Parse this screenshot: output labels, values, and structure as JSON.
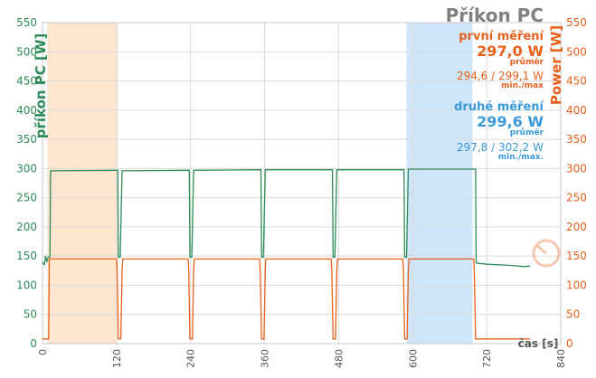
{
  "chart_data": {
    "type": "line",
    "title": "Příkon PC",
    "ylabel_left": "příkon PC [W]",
    "ylabel_right": "Power [W]",
    "xlabel": "čas [s]",
    "xlim": [
      0,
      840
    ],
    "ylim": [
      0,
      550
    ],
    "x_ticks": [
      0,
      120,
      240,
      360,
      480,
      600,
      720,
      840
    ],
    "y_ticks": [
      0,
      50,
      100,
      150,
      200,
      250,
      300,
      350,
      400,
      450,
      500,
      550
    ],
    "grid": true,
    "highlight_regions": [
      {
        "from": 8,
        "to": 122,
        "color": "#fde5d0"
      },
      {
        "from": 590,
        "to": 697,
        "color": "#cfe6fa"
      }
    ],
    "series": [
      {
        "color": "#2e8b57",
        "points": [
          [
            0,
            140
          ],
          [
            3,
            135
          ],
          [
            5,
            150
          ],
          [
            7,
            140
          ],
          [
            9,
            148
          ],
          [
            12,
            148
          ],
          [
            13,
            296
          ],
          [
            122,
            297
          ],
          [
            123,
            148
          ],
          [
            126,
            148
          ],
          [
            129,
            296
          ],
          [
            238,
            297
          ],
          [
            239,
            148
          ],
          [
            242,
            148
          ],
          [
            245,
            297
          ],
          [
            354,
            298
          ],
          [
            355,
            148
          ],
          [
            358,
            148
          ],
          [
            361,
            298
          ],
          [
            470,
            298
          ],
          [
            471,
            148
          ],
          [
            474,
            148
          ],
          [
            477,
            298
          ],
          [
            586,
            298
          ],
          [
            587,
            148
          ],
          [
            590,
            148
          ],
          [
            593,
            299
          ],
          [
            702,
            299
          ],
          [
            703,
            138
          ],
          [
            720,
            136
          ],
          [
            760,
            134
          ],
          [
            780,
            132
          ],
          [
            790,
            133
          ]
        ]
      },
      {
        "color": "#e8601c",
        "points": [
          [
            0,
            8
          ],
          [
            10,
            8
          ],
          [
            11,
            145
          ],
          [
            120,
            145
          ],
          [
            121,
            125
          ],
          [
            123,
            8
          ],
          [
            127,
            8
          ],
          [
            129,
            125
          ],
          [
            130,
            145
          ],
          [
            236,
            145
          ],
          [
            237,
            125
          ],
          [
            239,
            8
          ],
          [
            243,
            8
          ],
          [
            245,
            125
          ],
          [
            246,
            145
          ],
          [
            352,
            145
          ],
          [
            353,
            125
          ],
          [
            355,
            8
          ],
          [
            359,
            8
          ],
          [
            361,
            125
          ],
          [
            362,
            145
          ],
          [
            468,
            145
          ],
          [
            469,
            125
          ],
          [
            471,
            8
          ],
          [
            475,
            8
          ],
          [
            477,
            125
          ],
          [
            478,
            145
          ],
          [
            584,
            145
          ],
          [
            585,
            125
          ],
          [
            587,
            8
          ],
          [
            591,
            8
          ],
          [
            593,
            125
          ],
          [
            594,
            145
          ],
          [
            699,
            145
          ],
          [
            700,
            120
          ],
          [
            702,
            8
          ],
          [
            790,
            8
          ]
        ]
      }
    ],
    "annotations": {
      "first_title": "první měření",
      "first_value": "297,0 W",
      "first_avg_label": "průměr",
      "first_minmax": "294,6 / 299,1 W",
      "first_minmax_label": "min./max",
      "second_title": "druhé měření",
      "second_value": "299,6 W",
      "second_avg_label": "průměr",
      "second_minmax": "297,8 / 302,2 W",
      "second_minmax_label": "min./max."
    },
    "colors": {
      "first": "#e8601c",
      "second": "#3a9ad9",
      "left_axis": "#2e8b57",
      "right_axis": "#e8601c",
      "title": "#808080"
    }
  }
}
